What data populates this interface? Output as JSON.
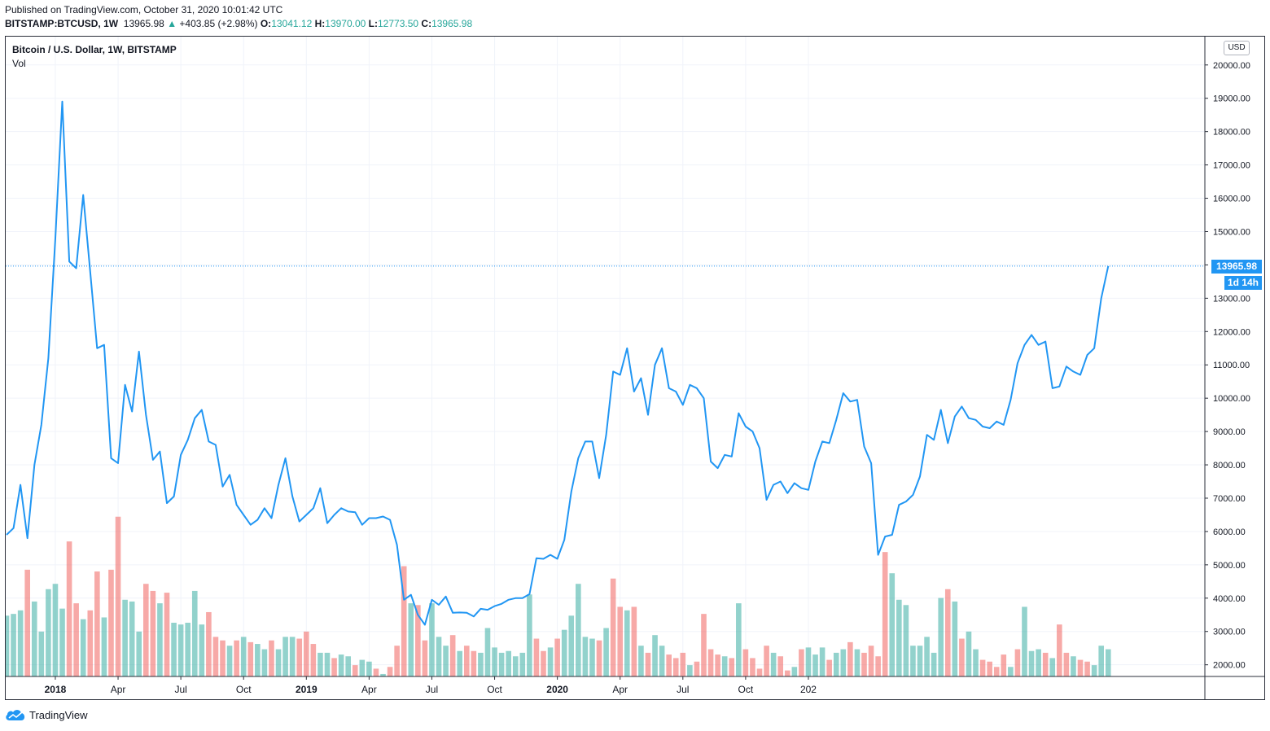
{
  "header": {
    "published": "Published on TradingView.com, October 31, 2020 10:01:42 UTC",
    "symbol": "BITSTAMP:BTCUSD, 1W",
    "last": "13965.98",
    "change": "+403.85 (+2.98%)",
    "o_label": "O:",
    "o_value": "13041.12",
    "h_label": "H:",
    "h_value": "13970.00",
    "l_label": "L:",
    "l_value": "12773.50",
    "c_label": "C:",
    "c_value": "13965.98"
  },
  "legend": {
    "title": "Bitcoin / U.S. Dollar, 1W, BITSTAMP",
    "volume": "Vol"
  },
  "currency": "USD",
  "price_tag": "13965.98",
  "timer_tag": "1d 14h",
  "footer": {
    "brand": "TradingView"
  },
  "colors": {
    "line": "#2196f3",
    "up": "#26a69a",
    "down": "#ef5350",
    "grid": "#f0f3fa"
  },
  "chart_data": {
    "type": "line",
    "title": "Bitcoin / U.S. Dollar, 1W, BITSTAMP",
    "grid": true,
    "y_ticks": [
      "20000.00",
      "19000.00",
      "18000.00",
      "17000.00",
      "16000.00",
      "15000.00",
      "14000.00",
      "13000.00",
      "12000.00",
      "11000.00",
      "10000.00",
      "9000.00",
      "8000.00",
      "7000.00",
      "6000.00",
      "5000.00",
      "4000.00",
      "3000.00",
      "2000.00"
    ],
    "ylim": [
      1650,
      20850
    ],
    "x_ticks": [
      {
        "i": 7,
        "label": "2018",
        "bold": true
      },
      {
        "i": 16,
        "label": "Apr"
      },
      {
        "i": 25,
        "label": "Jul"
      },
      {
        "i": 34,
        "label": "Oct"
      },
      {
        "i": 43,
        "label": "2019",
        "bold": true
      },
      {
        "i": 52,
        "label": "Apr"
      },
      {
        "i": 61,
        "label": "Jul"
      },
      {
        "i": 70,
        "label": "Oct"
      },
      {
        "i": 79,
        "label": "2020",
        "bold": true
      },
      {
        "i": 88,
        "label": "Apr"
      },
      {
        "i": 97,
        "label": "Jul"
      },
      {
        "i": 106,
        "label": "Oct"
      },
      {
        "i": 115,
        "label": "202"
      }
    ],
    "series": [
      {
        "kind": "price",
        "values": [
          5900,
          6100,
          7400,
          5800,
          8000,
          9200,
          11200,
          14800,
          18900,
          14100,
          13900,
          16100,
          13800,
          11500,
          11600,
          8200,
          8050,
          10400,
          9600,
          11400,
          9500,
          8150,
          8400,
          6850,
          7050,
          8300,
          8750,
          9400,
          9650,
          8700,
          8600,
          7350,
          7700,
          6800,
          6500,
          6200,
          6350,
          6700,
          6400,
          7400,
          8200,
          7050,
          6300,
          6500,
          6700,
          7300,
          6250,
          6500,
          6700,
          6600,
          6580,
          6200,
          6400,
          6400,
          6450,
          6350,
          5600,
          3950,
          4100,
          3500,
          3200,
          3950,
          3800,
          4050,
          3560,
          3570,
          3560,
          3450,
          3680,
          3650,
          3760,
          3830,
          3950,
          4000,
          4000,
          4120,
          5200,
          5180,
          5300,
          5180,
          5750,
          7200,
          8200,
          8700,
          8700,
          7600,
          8900,
          10800,
          10700,
          11500,
          10200,
          10600,
          9500,
          11000,
          11500,
          10300,
          10200,
          9800,
          10400,
          10300,
          10000,
          8100,
          7900,
          8300,
          8250,
          9550,
          9150,
          9000,
          8500,
          6950,
          7400,
          7500,
          7150,
          7450,
          7300,
          7250,
          8100,
          8700,
          8650,
          9350,
          10150,
          9900,
          9950,
          8550,
          8050,
          5300,
          5850,
          5900,
          6800,
          6900,
          7100,
          7650,
          8900,
          8750,
          9650,
          8650,
          9450,
          9750,
          9400,
          9350,
          9150,
          9100,
          9300,
          9200,
          9950,
          11050,
          11600,
          11900,
          11600,
          11700,
          10300,
          10350,
          10950,
          10800,
          10700,
          11300,
          11500,
          13000,
          13966
        ]
      },
      {
        "kind": "volume",
        "ticks": [
          "5000",
          "4000",
          "3000",
          "2000"
        ],
        "values": [
          3650,
          3700,
          3800,
          4950,
          4050,
          3200,
          4400,
          4550,
          3850,
          5750,
          4000,
          3550,
          3800,
          4900,
          3600,
          4950,
          6450,
          4100,
          4050,
          3200,
          4550,
          4350,
          4000,
          4300,
          3450,
          3400,
          3450,
          4350,
          3400,
          3750,
          3050,
          2950,
          2800,
          2950,
          3050,
          2900,
          2850,
          2700,
          2950,
          2700,
          3050,
          3050,
          3000,
          3200,
          2850,
          2600,
          2600,
          2450,
          2550,
          2500,
          2250,
          2400,
          2350,
          2150,
          2000,
          2200,
          2800,
          5050,
          4000,
          3950,
          2950,
          4000,
          3050,
          2800,
          3100,
          2650,
          2800,
          2650,
          2600,
          3300,
          2750,
          2600,
          2650,
          2500,
          2600,
          4250,
          3000,
          2650,
          2750,
          3000,
          3250,
          3650,
          4550,
          3050,
          3000,
          2950,
          3300,
          4700,
          3900,
          3800,
          3900,
          2800,
          2600,
          3100,
          2800,
          2550,
          2450,
          2600,
          2250,
          2350,
          3700,
          2700,
          2550,
          2500,
          2450,
          4000,
          2700,
          2450,
          2150,
          2800,
          2600,
          2500,
          2100,
          2200,
          2700,
          2750,
          2550,
          2750,
          2400,
          2600,
          2700,
          2900,
          2700,
          2600,
          2800,
          2500,
          5450,
          4850,
          4100,
          3950,
          2800,
          2800,
          3050,
          2600,
          4150,
          4400,
          4050,
          3000,
          3200,
          2700,
          2400,
          2350,
          2200,
          2550,
          2200,
          2700,
          3900,
          2650,
          2700,
          2600,
          2450,
          3400,
          2600,
          2500,
          2400,
          2350,
          2250,
          2800,
          2700
        ],
        "up": [
          1,
          1,
          1,
          0,
          1,
          1,
          1,
          1,
          1,
          0,
          0,
          1,
          0,
          0,
          1,
          0,
          0,
          1,
          1,
          1,
          0,
          0,
          1,
          0,
          1,
          1,
          1,
          1,
          1,
          0,
          0,
          0,
          1,
          0,
          1,
          0,
          1,
          1,
          0,
          1,
          1,
          1,
          0,
          0,
          0,
          1,
          1,
          0,
          1,
          1,
          0,
          1,
          1,
          0,
          1,
          0,
          0,
          0,
          1,
          0,
          0,
          1,
          1,
          1,
          0,
          1,
          0,
          0,
          1,
          1,
          1,
          1,
          1,
          1,
          1,
          1,
          0,
          0,
          1,
          0,
          1,
          1,
          1,
          1,
          1,
          0,
          1,
          0,
          0,
          1,
          0,
          1,
          0,
          1,
          1,
          0,
          0,
          0,
          1,
          0,
          0,
          0,
          0,
          1,
          0,
          1,
          0,
          0,
          0,
          0,
          1,
          0,
          0,
          1,
          0,
          1,
          1,
          1,
          0,
          1,
          1,
          0,
          1,
          0,
          0,
          0,
          0,
          1,
          1,
          1,
          1,
          1,
          1,
          1,
          1,
          0,
          1,
          0,
          1,
          1,
          0,
          0,
          0,
          0,
          1,
          0,
          1,
          1,
          1,
          0,
          1,
          0,
          0,
          1,
          0,
          0,
          1,
          1,
          1
        ],
        "ylim": [
          1930,
          7250
        ]
      }
    ]
  }
}
